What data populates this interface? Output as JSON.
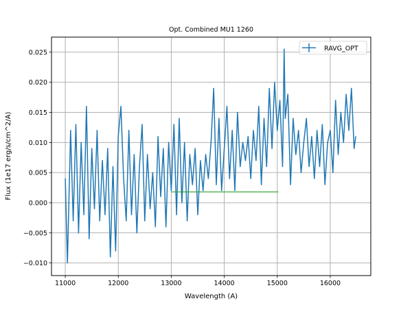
{
  "chart_data": {
    "type": "line",
    "title": "Opt. Combined MU1 1260",
    "xlabel": "Wavelength (A)",
    "ylabel": "Flux (1e17 erg/s/cm^2/A)",
    "xlim": [
      10740,
      16765
    ],
    "ylim": [
      -0.0121,
      0.0275
    ],
    "grid": true,
    "legend_placement": "top-right",
    "xticks": [
      11000,
      12000,
      13000,
      14000,
      15000,
      16000
    ],
    "xtick_labels": [
      "11000",
      "12000",
      "13000",
      "14000",
      "15000",
      "16000"
    ],
    "yticks": [
      -0.01,
      -0.005,
      0.0,
      0.005,
      0.01,
      0.015,
      0.02,
      0.025
    ],
    "ytick_labels": [
      "−0.010",
      "−0.005",
      "0.000",
      "0.005",
      "0.010",
      "0.015",
      "0.020",
      "0.025"
    ],
    "series": [
      {
        "name": "RAVG_OPT",
        "color": "#1f77b4",
        "x": [
          11000,
          11040,
          11100,
          11150,
          11200,
          11250,
          11300,
          11350,
          11400,
          11450,
          11500,
          11550,
          11600,
          11650,
          11700,
          11750,
          11800,
          11850,
          11900,
          11950,
          12000,
          12050,
          12100,
          12150,
          12200,
          12250,
          12300,
          12350,
          12400,
          12450,
          12500,
          12550,
          12600,
          12650,
          12700,
          12750,
          12800,
          12850,
          12900,
          12950,
          13000,
          13050,
          13100,
          13150,
          13200,
          13250,
          13300,
          13350,
          13400,
          13450,
          13500,
          13550,
          13600,
          13650,
          13700,
          13750,
          13800,
          13850,
          13900,
          13950,
          14000,
          14050,
          14100,
          14150,
          14200,
          14250,
          14300,
          14350,
          14400,
          14450,
          14500,
          14550,
          14600,
          14650,
          14700,
          14750,
          14800,
          14850,
          14900,
          14950,
          15000,
          15050,
          15100,
          15130,
          15150,
          15200,
          15250,
          15300,
          15350,
          15400,
          15450,
          15500,
          15550,
          15600,
          15650,
          15700,
          15750,
          15800,
          15850,
          15900,
          15950,
          16000,
          16050,
          16100,
          16150,
          16200,
          16250,
          16300,
          16350,
          16400,
          16450,
          16480
        ],
        "y": [
          0.004,
          -0.01,
          0.012,
          -0.003,
          0.013,
          -0.005,
          0.01,
          -0.002,
          0.016,
          -0.006,
          0.009,
          -0.001,
          0.012,
          -0.003,
          0.007,
          -0.002,
          0.009,
          -0.009,
          0.006,
          -0.008,
          0.011,
          0.016,
          0.004,
          -0.003,
          0.012,
          -0.002,
          0.008,
          -0.005,
          0.006,
          0.013,
          -0.003,
          0.008,
          -0.001,
          0.005,
          -0.004,
          0.011,
          0.001,
          0.009,
          -0.004,
          0.01,
          0.002,
          0.013,
          -0.002,
          0.014,
          0.0,
          0.01,
          -0.003,
          0.008,
          0.003,
          0.009,
          -0.002,
          0.007,
          0.002,
          0.008,
          0.004,
          0.01,
          0.019,
          0.003,
          0.014,
          0.002,
          0.009,
          0.016,
          0.004,
          0.012,
          0.002,
          0.015,
          0.006,
          0.01,
          0.007,
          0.011,
          0.004,
          0.012,
          0.007,
          0.016,
          0.003,
          0.014,
          0.006,
          0.019,
          0.009,
          0.02,
          0.012,
          0.017,
          0.006,
          0.0255,
          0.014,
          0.018,
          0.003,
          0.014,
          0.008,
          0.012,
          0.005,
          0.01,
          0.014,
          0.006,
          0.011,
          0.004,
          0.012,
          0.006,
          0.013,
          0.003,
          0.01,
          0.012,
          0.005,
          0.017,
          0.008,
          0.015,
          0.01,
          0.018,
          0.012,
          0.019,
          0.009,
          0.011
        ]
      },
      {
        "name": "",
        "color": "#2ca02c",
        "x": [
          13000,
          15020
        ],
        "y": [
          0.0018,
          0.0018
        ]
      }
    ]
  }
}
